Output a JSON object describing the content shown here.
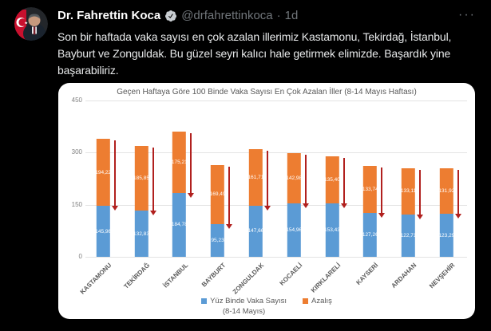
{
  "colors": {
    "background": "#000000",
    "card_bg": "#ffffff",
    "text_primary": "#e7e9ea",
    "text_secondary": "#71767b",
    "bar_blue": "#5b9bd5",
    "bar_orange": "#ed7d31",
    "arrow_red": "#b1201e",
    "chart_text": "#595959"
  },
  "header": {
    "display_name": "Dr. Fahrettin Koca",
    "verified_icon": "verified-badge",
    "handle": "@drfahrettinkoca",
    "separator": "·",
    "timestamp": "1d",
    "more": "···"
  },
  "tweet": {
    "text": "Son bir haftada vaka sayısı en çok azalan illerimiz Kastamonu, Tekirdağ, İstanbul, Bayburt ve Zonguldak. Bu güzel seyri kalıcı hale getirmek elimizde. Başardık yine başarabiliriz."
  },
  "chart_data": {
    "type": "bar",
    "stacked": true,
    "title": "Geçen Haftaya Göre 100 Binde Vaka Sayısı En Çok Azalan İller (8-14 Mayıs Haftası)",
    "categories": [
      "KASTAMONU",
      "TEKİRDAĞ",
      "İSTANBUL",
      "BAYBURT",
      "ZONGULDAK",
      "KOCAELİ",
      "KIRKLARELİ",
      "KAYSERİ",
      "ARDAHAN",
      "NEVŞEHİR"
    ],
    "series": [
      {
        "name": "Yüz Binde Vaka Sayısı (8-14 Mayıs)",
        "color": "#5b9bd5",
        "values": [
          145.96,
          132.83,
          184.78,
          95.23,
          147.66,
          154.96,
          153.43,
          127.26,
          122.71,
          123.29
        ]
      },
      {
        "name": "Azalış",
        "color": "#ed7d31",
        "values": [
          194.22,
          185.85,
          175.21,
          169.49,
          161.71,
          142.98,
          135.4,
          133.74,
          133.11,
          131.92
        ]
      }
    ],
    "ylim": [
      0,
      450
    ],
    "y_ticks": [
      0,
      150,
      300,
      450
    ],
    "grid": true,
    "legend_position": "bottom",
    "legend": [
      {
        "label": "Yüz Binde Vaka Sayısı",
        "sublabel": "(8-14 Mayıs)",
        "color": "#5b9bd5"
      },
      {
        "label": "Azalış",
        "color": "#ed7d31"
      }
    ],
    "annotations": {
      "type": "decrease-arrow",
      "color": "#b1201e"
    },
    "decimal_separator": ","
  }
}
